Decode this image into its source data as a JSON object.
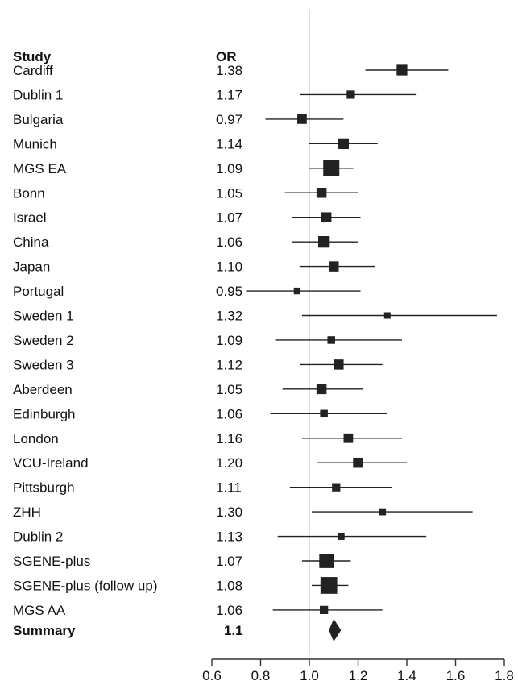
{
  "chart_data": {
    "type": "forest",
    "headers": {
      "study": "Study",
      "or": "OR"
    },
    "studies": [
      {
        "name": "Cardiff",
        "or_label": "1.38",
        "or": 1.38,
        "ci": [
          1.23,
          1.57
        ],
        "weight": 0.55
      },
      {
        "name": "Dublin 1",
        "or_label": "1.17",
        "or": 1.17,
        "ci": [
          0.96,
          1.44
        ],
        "weight": 0.35
      },
      {
        "name": "Bulgaria",
        "or_label": "0.97",
        "or": 0.97,
        "ci": [
          0.82,
          1.14
        ],
        "weight": 0.45
      },
      {
        "name": "Munich",
        "or_label": "1.14",
        "or": 1.14,
        "ci": [
          1.0,
          1.28
        ],
        "weight": 0.55
      },
      {
        "name": "MGS EA",
        "or_label": "1.09",
        "or": 1.09,
        "ci": [
          1.0,
          1.18
        ],
        "weight": 1.0
      },
      {
        "name": "Bonn",
        "or_label": "1.05",
        "or": 1.05,
        "ci": [
          0.9,
          1.2
        ],
        "weight": 0.5
      },
      {
        "name": "Israel",
        "or_label": "1.07",
        "or": 1.07,
        "ci": [
          0.93,
          1.21
        ],
        "weight": 0.5
      },
      {
        "name": "China",
        "or_label": "1.06",
        "or": 1.06,
        "ci": [
          0.93,
          1.2
        ],
        "weight": 0.62
      },
      {
        "name": "Japan",
        "or_label": "1.10",
        "or": 1.1,
        "ci": [
          0.96,
          1.27
        ],
        "weight": 0.5
      },
      {
        "name": "Portugal",
        "or_label": "0.95",
        "or": 0.95,
        "ci": [
          0.74,
          1.21
        ],
        "weight": 0.22
      },
      {
        "name": "Sweden 1",
        "or_label": "1.32",
        "or": 1.32,
        "ci": [
          0.97,
          1.77
        ],
        "weight": 0.2
      },
      {
        "name": "Sweden 2",
        "or_label": "1.09",
        "or": 1.09,
        "ci": [
          0.86,
          1.38
        ],
        "weight": 0.3
      },
      {
        "name": "Sweden 3",
        "or_label": "1.12",
        "or": 1.12,
        "ci": [
          0.96,
          1.3
        ],
        "weight": 0.5
      },
      {
        "name": "Aberdeen",
        "or_label": "1.05",
        "or": 1.05,
        "ci": [
          0.89,
          1.22
        ],
        "weight": 0.5
      },
      {
        "name": "Edinburgh",
        "or_label": "1.06",
        "or": 1.06,
        "ci": [
          0.84,
          1.32
        ],
        "weight": 0.3
      },
      {
        "name": "London",
        "or_label": "1.16",
        "or": 1.16,
        "ci": [
          0.97,
          1.38
        ],
        "weight": 0.45
      },
      {
        "name": "VCU-Ireland",
        "or_label": "1.20",
        "or": 1.2,
        "ci": [
          1.03,
          1.4
        ],
        "weight": 0.5
      },
      {
        "name": "Pittsburgh",
        "or_label": "1.11",
        "or": 1.11,
        "ci": [
          0.92,
          1.34
        ],
        "weight": 0.35
      },
      {
        "name": "ZHH",
        "or_label": "1.30",
        "or": 1.3,
        "ci": [
          1.01,
          1.67
        ],
        "weight": 0.25
      },
      {
        "name": "Dublin 2",
        "or_label": "1.13",
        "or": 1.13,
        "ci": [
          0.87,
          1.48
        ],
        "weight": 0.25
      },
      {
        "name": "SGENE-plus",
        "or_label": "1.07",
        "or": 1.07,
        "ci": [
          0.97,
          1.17
        ],
        "weight": 0.85
      },
      {
        "name": "SGENE-plus (follow up)",
        "or_label": "1.08",
        "or": 1.08,
        "ci": [
          1.01,
          1.16
        ],
        "weight": 1.05
      },
      {
        "name": "MGS AA",
        "or_label": "1.06",
        "or": 1.06,
        "ci": [
          0.85,
          1.3
        ],
        "weight": 0.35
      }
    ],
    "summary": {
      "name": "Summary",
      "or_label": "1.1",
      "or": 1.1,
      "ci": [
        1.08,
        1.13
      ]
    },
    "x_axis": {
      "ticks": [
        "0.6",
        "0.8",
        "1.0",
        "1.2",
        "1.4",
        "1.6",
        "1.8"
      ],
      "tick_values": [
        0.6,
        0.8,
        1.0,
        1.2,
        1.4,
        1.6,
        1.8
      ],
      "range": [
        0.6,
        1.8
      ],
      "reference_line": 1.0
    },
    "colors": {
      "marker": "#222222",
      "reference_line": "#c8c8c8",
      "axis": "#333333"
    }
  }
}
